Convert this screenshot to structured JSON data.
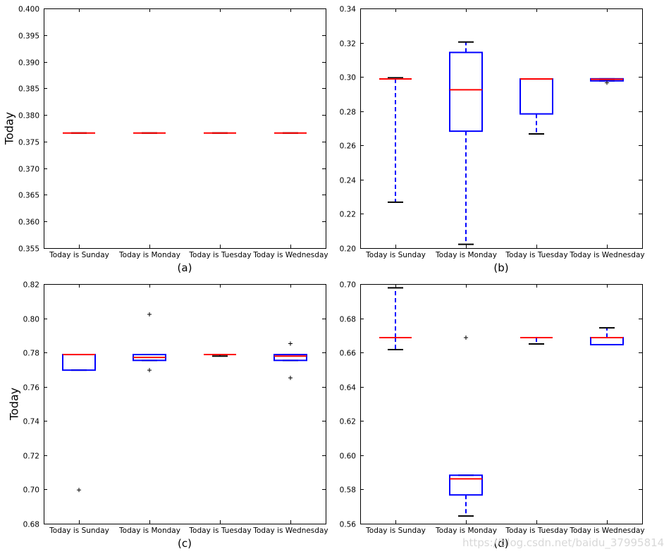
{
  "figure": {
    "watermark": "https://blog.csdn.net/baidu_37995814",
    "colors": {
      "box": "#0000ff",
      "median": "#ff0000",
      "cap": "#000000",
      "flier": "#000000",
      "axis": "#000000",
      "background": "#ffffff"
    }
  },
  "chart_data": [
    {
      "type": "box",
      "caption": "(a)",
      "ylabel": "Today",
      "ylim": [
        0.355,
        0.4
      ],
      "yticks": [
        0.355,
        0.36,
        0.365,
        0.37,
        0.375,
        0.38,
        0.385,
        0.39,
        0.395,
        0.4
      ],
      "ytick_labels": [
        "0.355",
        "0.360",
        "0.365",
        "0.370",
        "0.375",
        "0.380",
        "0.385",
        "0.390",
        "0.395",
        "0.400"
      ],
      "categories": [
        "Today is Sunday",
        "Today is Monday",
        "Today is Tuesday",
        "Today is Wednesday"
      ],
      "boxes": [
        {
          "whislo": 0.3766,
          "q1": 0.3766,
          "med": 0.3766,
          "q3": 0.3766,
          "whishi": 0.3766,
          "fliers": []
        },
        {
          "whislo": 0.3766,
          "q1": 0.3766,
          "med": 0.3766,
          "q3": 0.3766,
          "whishi": 0.3766,
          "fliers": []
        },
        {
          "whislo": 0.3766,
          "q1": 0.3766,
          "med": 0.3766,
          "q3": 0.3766,
          "whishi": 0.3766,
          "fliers": []
        },
        {
          "whislo": 0.3766,
          "q1": 0.3766,
          "med": 0.3766,
          "q3": 0.3766,
          "whishi": 0.3766,
          "fliers": []
        }
      ]
    },
    {
      "type": "box",
      "caption": "(b)",
      "ylabel": "",
      "ylim": [
        0.2,
        0.34
      ],
      "yticks": [
        0.2,
        0.22,
        0.24,
        0.26,
        0.28,
        0.3,
        0.32,
        0.34
      ],
      "ytick_labels": [
        "0.20",
        "0.22",
        "0.24",
        "0.26",
        "0.28",
        "0.30",
        "0.32",
        "0.34"
      ],
      "categories": [
        "Today is Sunday",
        "Today is Monday",
        "Today is Tuesday",
        "Today is Wednesday"
      ],
      "boxes": [
        {
          "whislo": 0.2268,
          "q1": 0.2988,
          "med": 0.2988,
          "q3": 0.2988,
          "whishi": 0.2995,
          "fliers": []
        },
        {
          "whislo": 0.2022,
          "q1": 0.2683,
          "med": 0.2925,
          "q3": 0.3143,
          "whishi": 0.3204,
          "fliers": []
        },
        {
          "whislo": 0.2667,
          "q1": 0.2784,
          "med": 0.2988,
          "q3": 0.2988,
          "whishi": 0.2988,
          "fliers": []
        },
        {
          "whislo": 0.2977,
          "q1": 0.2977,
          "med": 0.2986,
          "q3": 0.2989,
          "whishi": 0.2989,
          "fliers": [
            0.2966
          ]
        }
      ]
    },
    {
      "type": "box",
      "caption": "(c)",
      "ylabel": "Today",
      "ylim": [
        0.68,
        0.82
      ],
      "yticks": [
        0.68,
        0.7,
        0.72,
        0.74,
        0.76,
        0.78,
        0.8,
        0.82
      ],
      "ytick_labels": [
        "0.68",
        "0.70",
        "0.72",
        "0.74",
        "0.76",
        "0.78",
        "0.80",
        "0.82"
      ],
      "categories": [
        "Today is Sunday",
        "Today is Monday",
        "Today is Tuesday",
        "Today is Wednesday"
      ],
      "boxes": [
        {
          "whislo": 0.7697,
          "q1": 0.7697,
          "med": 0.7788,
          "q3": 0.7788,
          "whishi": 0.7788,
          "fliers": [
            0.6997
          ]
        },
        {
          "whislo": 0.7754,
          "q1": 0.7754,
          "med": 0.7771,
          "q3": 0.7788,
          "whishi": 0.7788,
          "fliers": [
            0.8023,
            0.7697
          ]
        },
        {
          "whislo": 0.7779,
          "q1": 0.7788,
          "med": 0.7788,
          "q3": 0.7788,
          "whishi": 0.7788,
          "fliers": []
        },
        {
          "whislo": 0.7754,
          "q1": 0.7754,
          "med": 0.7779,
          "q3": 0.7788,
          "whishi": 0.7788,
          "fliers": [
            0.7852,
            0.7652
          ]
        }
      ]
    },
    {
      "type": "box",
      "caption": "(d)",
      "ylabel": "",
      "ylim": [
        0.56,
        0.7
      ],
      "yticks": [
        0.56,
        0.58,
        0.6,
        0.62,
        0.64,
        0.66,
        0.68,
        0.7
      ],
      "ytick_labels": [
        "0.56",
        "0.58",
        "0.60",
        "0.62",
        "0.64",
        "0.66",
        "0.68",
        "0.70"
      ],
      "categories": [
        "Today is Sunday",
        "Today is Monday",
        "Today is Tuesday",
        "Today is Wednesday"
      ],
      "boxes": [
        {
          "whislo": 0.6617,
          "q1": 0.6687,
          "med": 0.6687,
          "q3": 0.6687,
          "whishi": 0.6978,
          "fliers": []
        },
        {
          "whislo": 0.5645,
          "q1": 0.5768,
          "med": 0.5862,
          "q3": 0.5883,
          "whishi": 0.5883,
          "fliers": [
            0.6687
          ]
        },
        {
          "whislo": 0.665,
          "q1": 0.6687,
          "med": 0.6687,
          "q3": 0.6687,
          "whishi": 0.6687,
          "fliers": []
        },
        {
          "whislo": 0.6646,
          "q1": 0.6646,
          "med": 0.6687,
          "q3": 0.6687,
          "whishi": 0.6744,
          "fliers": []
        }
      ]
    }
  ]
}
